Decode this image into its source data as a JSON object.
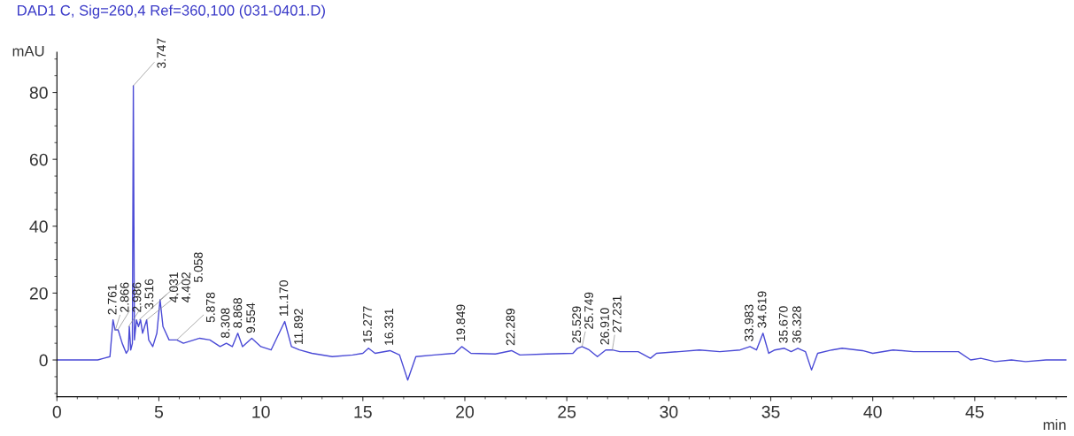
{
  "chart_data": {
    "type": "line",
    "title": "DAD1 C, Sig=260,4 Ref=360,100 (031-0401.D)",
    "ylabel": "mAU",
    "xlabel": "min",
    "xlim": [
      0,
      49.5
    ],
    "xticks": [
      0,
      5,
      10,
      15,
      20,
      25,
      30,
      35,
      40,
      45
    ],
    "ylim": [
      -11,
      92
    ],
    "yticks": [
      0,
      20,
      40,
      60,
      80
    ],
    "grid": false,
    "legend": false,
    "marker": "none",
    "line_style": "solid",
    "series": [
      {
        "color": "#4a4ad6",
        "x": [
          0,
          2.0,
          2.3,
          2.6,
          2.75,
          2.85,
          3.0,
          3.2,
          3.4,
          3.5,
          3.55,
          3.62,
          3.7,
          3.747,
          3.8,
          3.9,
          4.0,
          4.1,
          4.2,
          4.3,
          4.4,
          4.5,
          4.7,
          4.9,
          5.058,
          5.2,
          5.5,
          5.878,
          6.2,
          7.0,
          7.5,
          8.0,
          8.308,
          8.6,
          8.868,
          9.1,
          9.554,
          10.0,
          10.5,
          11.17,
          11.5,
          11.892,
          12.5,
          13.5,
          14.5,
          15.0,
          15.277,
          15.6,
          16.331,
          16.8,
          17.2,
          17.6,
          18.5,
          19.5,
          19.849,
          20.3,
          21.5,
          22.289,
          22.7,
          24.0,
          25.3,
          25.529,
          25.749,
          26.1,
          26.5,
          26.91,
          27.231,
          27.6,
          28.5,
          29.1,
          29.4,
          30.5,
          31.5,
          32.5,
          33.5,
          33.983,
          34.3,
          34.619,
          34.9,
          35.2,
          35.67,
          36.0,
          36.328,
          36.7,
          37.0,
          37.3,
          38.0,
          38.5,
          39.5,
          40.0,
          41.0,
          42.0,
          43.0,
          44.2,
          44.8,
          45.3,
          46.0,
          46.8,
          47.5,
          48.5,
          49.5
        ],
        "values": [
          0,
          0,
          0.5,
          1,
          12,
          9,
          9,
          5,
          2,
          3,
          10,
          3,
          5,
          82,
          6,
          12,
          10,
          12,
          8,
          10,
          12,
          6,
          4,
          8,
          18,
          10,
          6,
          6,
          5,
          6.5,
          6,
          4,
          5,
          4,
          8,
          4,
          6.5,
          4,
          3,
          11.5,
          4,
          3,
          2,
          1,
          1.5,
          2,
          3.5,
          2,
          2.8,
          1.5,
          -6,
          1,
          1.5,
          2,
          4,
          2,
          1.8,
          2.8,
          1.5,
          1.8,
          2,
          3.5,
          4,
          3,
          1,
          3,
          3,
          2.5,
          2.5,
          0.5,
          2,
          2.5,
          3,
          2.5,
          3,
          4,
          3,
          8,
          2,
          3,
          3.5,
          2.5,
          3.5,
          2.5,
          -3,
          2,
          3,
          3.5,
          2.8,
          2,
          3,
          2.5,
          2.5,
          2.5,
          0,
          0.5,
          -0.5,
          0,
          -0.5,
          0,
          0
        ]
      }
    ],
    "annotations": [
      {
        "text": "2.761",
        "x": 2.761,
        "y": 12
      },
      {
        "text": "2.866",
        "x": 2.866,
        "y": 9
      },
      {
        "text": "2.986",
        "x": 2.986,
        "y": 9
      },
      {
        "text": "3.516",
        "x": 3.516,
        "y": 10
      },
      {
        "text": "3.747",
        "x": 3.747,
        "y": 82
      },
      {
        "text": "4.031",
        "x": 4.031,
        "y": 12
      },
      {
        "text": "4.402",
        "x": 4.402,
        "y": 12
      },
      {
        "text": "5.058",
        "x": 5.058,
        "y": 18
      },
      {
        "text": "5.878",
        "x": 5.878,
        "y": 6
      },
      {
        "text": "8.308",
        "x": 8.308,
        "y": 5
      },
      {
        "text": "8.868",
        "x": 8.868,
        "y": 8
      },
      {
        "text": "9.554",
        "x": 9.554,
        "y": 6.5
      },
      {
        "text": "11.170",
        "x": 11.17,
        "y": 11.5
      },
      {
        "text": "11.892",
        "x": 11.892,
        "y": 3
      },
      {
        "text": "15.277",
        "x": 15.277,
        "y": 3.5
      },
      {
        "text": "16.331",
        "x": 16.331,
        "y": 2.8
      },
      {
        "text": "19.849",
        "x": 19.849,
        "y": 4
      },
      {
        "text": "22.289",
        "x": 22.289,
        "y": 2.8
      },
      {
        "text": "25.529",
        "x": 25.529,
        "y": 3.5
      },
      {
        "text": "25.749",
        "x": 25.749,
        "y": 4
      },
      {
        "text": "26.910",
        "x": 26.91,
        "y": 3
      },
      {
        "text": "27.231",
        "x": 27.231,
        "y": 3
      },
      {
        "text": "33.983",
        "x": 33.983,
        "y": 4
      },
      {
        "text": "34.619",
        "x": 34.619,
        "y": 8
      },
      {
        "text": "35.670",
        "x": 35.67,
        "y": 3.5
      },
      {
        "text": "36.328",
        "x": 36.328,
        "y": 3.5
      }
    ]
  }
}
